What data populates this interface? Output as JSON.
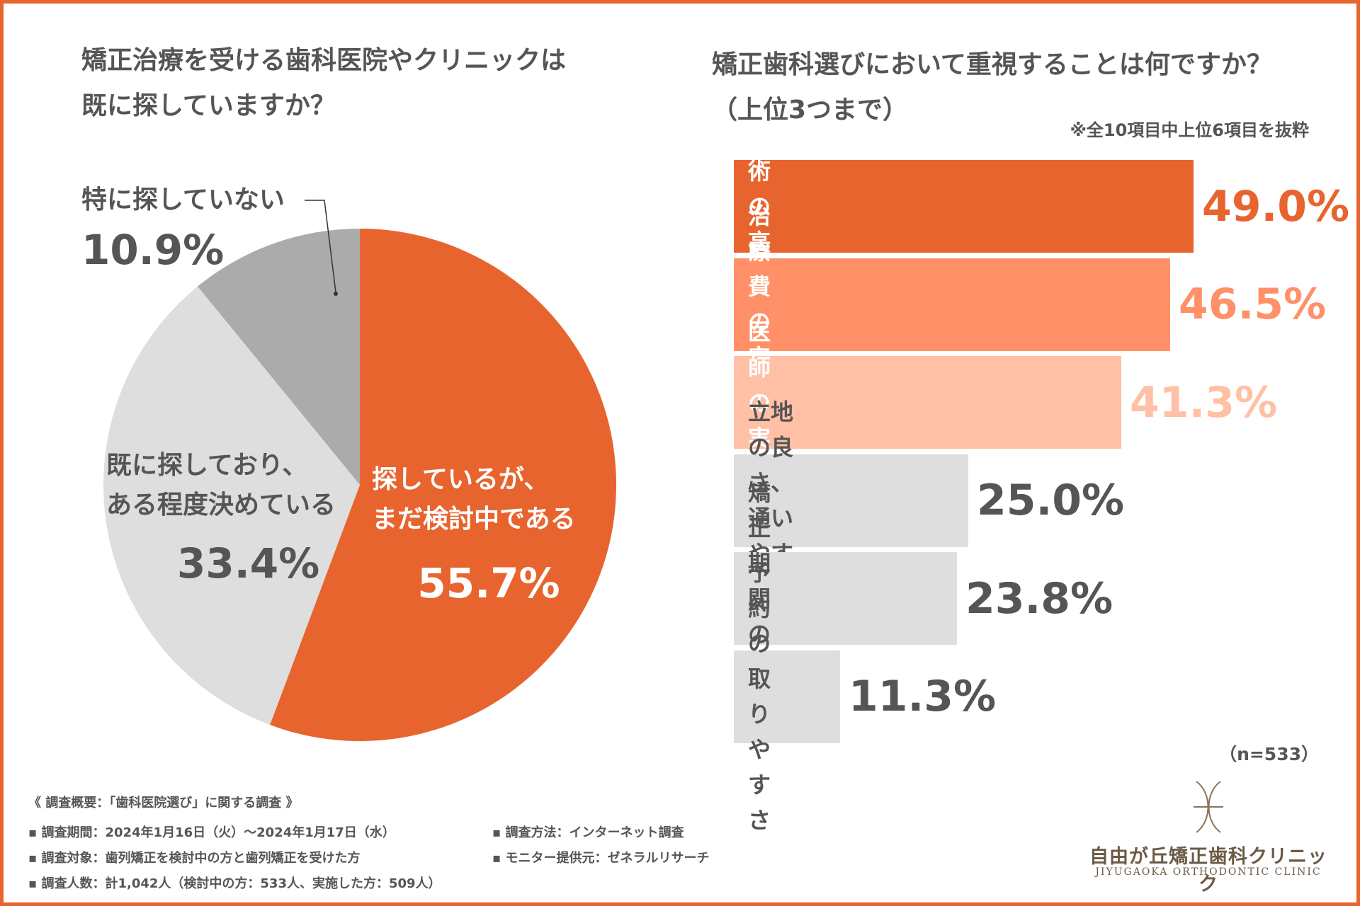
{
  "colors": {
    "accent": "#E8642F",
    "accent_mid": "#FF9068",
    "accent_light": "#FFC0A6",
    "gray_light": "#DEDEDE",
    "gray_mid": "#ABABAB",
    "text": "#555555"
  },
  "left": {
    "title": "矯正治療を受ける歯科医院やクリニックは\n既に探していますか？"
  },
  "right": {
    "title": "矯正歯科選びにおいて重視することは何ですか？\n（上位3つまで）",
    "note": "※全10項目中上位6項目を抜粋",
    "sample": "（n=533）"
  },
  "chart_data": [
    {
      "type": "pie",
      "title": "矯正治療を受ける歯科医院やクリニックは既に探していますか？",
      "slices": [
        {
          "label": "探しているが、\nまだ検討中である",
          "value": 55.7,
          "display": "55.7%",
          "color": "#E8642F"
        },
        {
          "label": "既に探しており、\nある程度決めている",
          "value": 33.4,
          "display": "33.4%",
          "color": "#DEDEDE"
        },
        {
          "label": "特に探していない",
          "value": 10.9,
          "display": "10.9%",
          "color": "#ABABAB"
        }
      ]
    },
    {
      "type": "bar",
      "orientation": "horizontal",
      "title": "矯正歯科選びにおいて重視することは何ですか？（上位3つまで）",
      "xlim": [
        0,
        60
      ],
      "categories": [
        "技術の高さ",
        "治療費の安さ",
        "医師の実績",
        "立地の良さ、\n通いやすさ",
        "矯正期間の短さ",
        "予約の取りやすさ"
      ],
      "values": [
        49.0,
        46.5,
        41.3,
        25.0,
        23.8,
        11.3
      ],
      "display": [
        "49.0%",
        "46.5%",
        "41.3%",
        "25.0%",
        "23.8%",
        "11.3%"
      ],
      "bar_colors": [
        "#E8642F",
        "#FF9068",
        "#FFC0A6",
        "#DEDEDE",
        "#DEDEDE",
        "#DEDEDE"
      ],
      "label_colors": [
        "#ffffff",
        "#ffffff",
        "#ffffff",
        "#555555",
        "#555555",
        "#555555"
      ],
      "value_colors": [
        "#E8642F",
        "#FF9068",
        "#FFC0A6",
        "#555555",
        "#555555",
        "#555555"
      ]
    }
  ],
  "survey": {
    "heading": "《 調査概要：「歯科医院選び」に関する調査 》",
    "period": "▪ 調査期間：2024年1月16日（火）〜2024年1月17日（水）",
    "target": "▪ 調査対象：歯列矯正を検討中の方と歯列矯正を受けた方",
    "count": "▪ 調査人数：計1,042人（検討中の方：533人、実施した方：509人）",
    "method": "▪ 調査方法：インターネット調査",
    "provider": "▪ モニター提供元：ゼネラルリサーチ"
  },
  "logo": {
    "icon": "clinic-monogram-icon",
    "name": "自由が丘矯正歯科クリニック",
    "sub": "JIYUGAOKA ORTHODONTIC CLINIC"
  }
}
